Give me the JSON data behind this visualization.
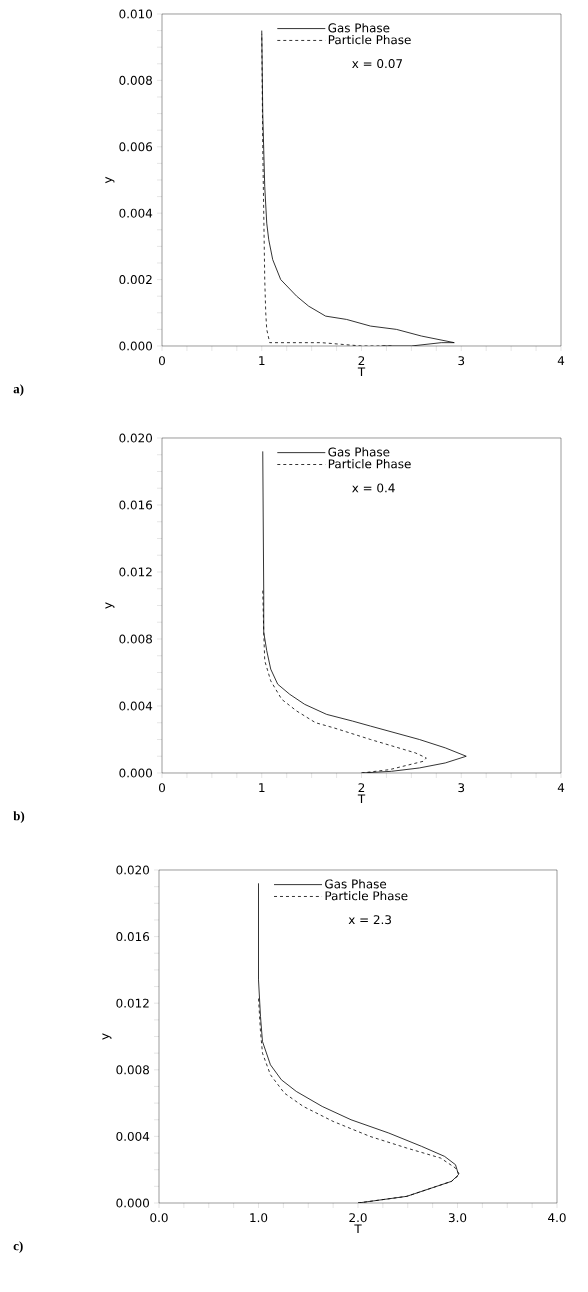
{
  "chart_data": [
    {
      "type": "line",
      "xlabel": "T",
      "ylabel": "y",
      "legend": "top right",
      "xlim": [
        0,
        4
      ],
      "ylim": [
        0,
        0.01
      ],
      "xticks": [
        0,
        {
          "value": 0.25,
          "label": null
        },
        {
          "value": 0.5,
          "label": null
        },
        {
          "value": 0.75,
          "label": null
        },
        1,
        {
          "value": 1.25,
          "label": null
        },
        {
          "value": 1.5,
          "label": null
        },
        {
          "value": 1.75,
          "label": null
        },
        2,
        {
          "value": 2.25,
          "label": null
        },
        {
          "value": 2.5,
          "label": null
        },
        {
          "value": 2.75,
          "label": null
        },
        3,
        {
          "value": 3.25,
          "label": null
        },
        {
          "value": 3.5,
          "label": null
        },
        {
          "value": 3.75,
          "label": null
        },
        4
      ],
      "yticks": [
        {
          "value": 0,
          "label": "0.000"
        },
        {
          "value": 0.0005,
          "label": null
        },
        {
          "value": 0.001,
          "label": null
        },
        {
          "value": 0.0015,
          "label": null
        },
        {
          "value": 0.002,
          "label": "0.002"
        },
        {
          "value": 0.0025,
          "label": null
        },
        {
          "value": 0.003,
          "label": null
        },
        {
          "value": 0.0035,
          "label": null
        },
        {
          "value": 0.004,
          "label": "0.004"
        },
        {
          "value": 0.0045,
          "label": null
        },
        {
          "value": 0.005,
          "label": null
        },
        {
          "value": 0.0055,
          "label": null
        },
        {
          "value": 0.006,
          "label": "0.006"
        },
        {
          "value": 0.0065,
          "label": null
        },
        {
          "value": 0.007,
          "label": null
        },
        {
          "value": 0.0075,
          "label": null
        },
        {
          "value": 0.008,
          "label": "0.008"
        },
        {
          "value": 0.0085,
          "label": null
        },
        {
          "value": 0.009,
          "label": null
        },
        {
          "value": 0.0095,
          "label": null
        },
        {
          "value": 0.01,
          "label": "0.010"
        }
      ],
      "annotations": [
        "x  =  0.07",
        "a)"
      ],
      "series": [
        {
          "name": "Gas Phase",
          "color": "#000000",
          "line_style": "solid",
          "x": [
            2.2,
            2.5,
            2.8,
            2.93,
            2.6,
            2.35,
            2.09,
            1.85,
            1.64,
            1.47,
            1.35,
            1.19,
            1.11,
            1.07,
            1.05,
            1.03,
            1.02,
            1.01,
            1.0
          ],
          "values": [
            0,
            0,
            0.0001,
            0.0001,
            0.0003,
            0.0005,
            0.0006,
            0.0008,
            0.0009,
            0.0012,
            0.0015,
            0.002,
            0.0026,
            0.0032,
            0.0037,
            0.0048,
            0.0059,
            0.007,
            0.0095
          ]
        },
        {
          "name": "Particle Phase",
          "color": "#000000",
          "line_style": "dashed",
          "x": [
            2.3,
            2.0,
            1.6,
            1.3,
            1.08,
            1.05,
            1.04,
            1.03,
            1.02,
            1.01,
            1.0
          ],
          "values": [
            0,
            0,
            0.0001,
            0.0001,
            0.0001,
            0.0005,
            0.001,
            0.002,
            0.004,
            0.006,
            0.0094
          ]
        }
      ]
    },
    {
      "type": "line",
      "xlabel": "T",
      "ylabel": "y",
      "legend": "top right",
      "xlim": [
        0,
        4
      ],
      "ylim": [
        0,
        0.02
      ],
      "xticks": [
        0,
        {
          "value": 0.25,
          "label": null
        },
        {
          "value": 0.5,
          "label": null
        },
        {
          "value": 0.75,
          "label": null
        },
        1,
        {
          "value": 1.25,
          "label": null
        },
        {
          "value": 1.5,
          "label": null
        },
        {
          "value": 1.75,
          "label": null
        },
        2,
        {
          "value": 2.25,
          "label": null
        },
        {
          "value": 2.5,
          "label": null
        },
        {
          "value": 2.75,
          "label": null
        },
        3,
        {
          "value": 3.25,
          "label": null
        },
        {
          "value": 3.5,
          "label": null
        },
        {
          "value": 3.75,
          "label": null
        },
        4
      ],
      "yticks": [
        {
          "value": 0,
          "label": "0.000"
        },
        {
          "value": 0.001,
          "label": null
        },
        {
          "value": 0.002,
          "label": null
        },
        {
          "value": 0.003,
          "label": null
        },
        {
          "value": 0.004,
          "label": "0.004"
        },
        {
          "value": 0.005,
          "label": null
        },
        {
          "value": 0.006,
          "label": null
        },
        {
          "value": 0.007,
          "label": null
        },
        {
          "value": 0.008,
          "label": "0.008"
        },
        {
          "value": 0.009,
          "label": null
        },
        {
          "value": 0.01,
          "label": null
        },
        {
          "value": 0.011,
          "label": null
        },
        {
          "value": 0.012,
          "label": "0.012"
        },
        {
          "value": 0.013,
          "label": null
        },
        {
          "value": 0.014,
          "label": null
        },
        {
          "value": 0.015,
          "label": null
        },
        {
          "value": 0.016,
          "label": "0.016"
        },
        {
          "value": 0.017,
          "label": null
        },
        {
          "value": 0.018,
          "label": null
        },
        {
          "value": 0.019,
          "label": null
        },
        {
          "value": 0.02,
          "label": "0.020"
        }
      ],
      "annotations": [
        "x  =  0.4",
        "b)"
      ],
      "series": [
        {
          "name": "Gas Phase",
          "color": "#000000",
          "line_style": "solid",
          "x": [
            2.0,
            2.3,
            2.58,
            2.84,
            3.05,
            2.84,
            2.58,
            2.09,
            1.91,
            1.65,
            1.43,
            1.28,
            1.16,
            1.09,
            1.05,
            1.02,
            1.02,
            1.01
          ],
          "values": [
            0,
            0.0001,
            0.0003,
            0.0006,
            0.001,
            0.0015,
            0.002,
            0.0028,
            0.0031,
            0.0035,
            0.0041,
            0.0047,
            0.0053,
            0.0062,
            0.0073,
            0.0084,
            0.0106,
            0.0192
          ]
        },
        {
          "name": "Particle Phase",
          "color": "#000000",
          "line_style": "dashed",
          "x": [
            2.0,
            2.28,
            2.62,
            2.65,
            2.54,
            2.09,
            1.72,
            1.54,
            1.35,
            1.2,
            1.09,
            1.03,
            1.02,
            1.01
          ],
          "values": [
            0,
            0.0002,
            0.0007,
            0.0009,
            0.0012,
            0.002,
            0.0027,
            0.003,
            0.0037,
            0.0044,
            0.0055,
            0.0067,
            0.0084,
            0.0109
          ]
        }
      ]
    },
    {
      "type": "line",
      "xlabel": "T",
      "ylabel": "y",
      "legend": "top right",
      "xlim": [
        0,
        4
      ],
      "ylim": [
        0,
        0.02
      ],
      "xticks": [
        {
          "value": 0,
          "label": "0.0"
        },
        {
          "value": 0.25,
          "label": null
        },
        {
          "value": 0.5,
          "label": null
        },
        {
          "value": 0.75,
          "label": null
        },
        {
          "value": 1,
          "label": "1.0"
        },
        {
          "value": 1.25,
          "label": null
        },
        {
          "value": 1.5,
          "label": null
        },
        {
          "value": 1.75,
          "label": null
        },
        {
          "value": 2,
          "label": "2.0"
        },
        {
          "value": 2.25,
          "label": null
        },
        {
          "value": 2.5,
          "label": null
        },
        {
          "value": 2.75,
          "label": null
        },
        {
          "value": 3,
          "label": "3.0"
        },
        {
          "value": 3.25,
          "label": null
        },
        {
          "value": 3.5,
          "label": null
        },
        {
          "value": 3.75,
          "label": null
        },
        {
          "value": 4,
          "label": "4.0"
        }
      ],
      "yticks": [
        {
          "value": 0,
          "label": "0.000"
        },
        {
          "value": 0.001,
          "label": null
        },
        {
          "value": 0.002,
          "label": null
        },
        {
          "value": 0.003,
          "label": null
        },
        {
          "value": 0.004,
          "label": "0.004"
        },
        {
          "value": 0.005,
          "label": null
        },
        {
          "value": 0.006,
          "label": null
        },
        {
          "value": 0.007,
          "label": null
        },
        {
          "value": 0.008,
          "label": "0.008"
        },
        {
          "value": 0.009,
          "label": null
        },
        {
          "value": 0.01,
          "label": null
        },
        {
          "value": 0.011,
          "label": null
        },
        {
          "value": 0.012,
          "label": "0.012"
        },
        {
          "value": 0.013,
          "label": null
        },
        {
          "value": 0.014,
          "label": null
        },
        {
          "value": 0.015,
          "label": null
        },
        {
          "value": 0.016,
          "label": "0.016"
        },
        {
          "value": 0.017,
          "label": null
        },
        {
          "value": 0.018,
          "label": null
        },
        {
          "value": 0.019,
          "label": null
        },
        {
          "value": 0.02,
          "label": "0.020"
        }
      ],
      "annotations": [
        "x  =  2.3",
        "c)"
      ],
      "series": [
        {
          "name": "Gas Phase",
          "color": "#000000",
          "line_style": "solid",
          "x": [
            2.0,
            2.49,
            2.79,
            2.94,
            3.01,
            2.98,
            2.87,
            2.64,
            2.31,
            1.93,
            1.64,
            1.38,
            1.23,
            1.12,
            1.04,
            1.02,
            1.0,
            1.0
          ],
          "values": [
            0,
            0.0004,
            0.001,
            0.0013,
            0.0017,
            0.0023,
            0.0028,
            0.0034,
            0.0042,
            0.005,
            0.0058,
            0.0067,
            0.0074,
            0.0083,
            0.0097,
            0.0112,
            0.0134,
            0.0192
          ]
        },
        {
          "name": "Particle Phase",
          "color": "#000000",
          "line_style": "dashed",
          "x": [
            2.0,
            2.49,
            2.79,
            2.94,
            3.02,
            2.98,
            2.83,
            2.49,
            2.12,
            1.75,
            1.45,
            1.26,
            1.12,
            1.04,
            1.02,
            1.0
          ],
          "values": [
            0,
            0.0004,
            0.001,
            0.0013,
            0.0017,
            0.0021,
            0.0027,
            0.0033,
            0.004,
            0.0049,
            0.0058,
            0.0066,
            0.0077,
            0.009,
            0.0103,
            0.0123
          ]
        }
      ]
    }
  ]
}
